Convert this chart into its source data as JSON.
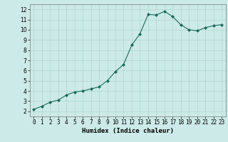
{
  "xlabel": "Humidex (Indice chaleur)",
  "x_values": [
    0,
    1,
    2,
    3,
    4,
    5,
    6,
    7,
    8,
    9,
    10,
    11,
    12,
    13,
    14,
    15,
    16,
    17,
    18,
    19,
    20,
    21,
    22,
    23
  ],
  "y_values": [
    2.2,
    2.5,
    2.9,
    3.1,
    3.6,
    3.9,
    4.0,
    4.2,
    4.4,
    5.0,
    5.9,
    6.6,
    8.5,
    9.6,
    11.5,
    11.45,
    11.8,
    11.3,
    10.5,
    10.0,
    9.9,
    10.2,
    10.4,
    10.5
  ],
  "line_color": "#1a6b5a",
  "marker_color": "#1a6b5a",
  "bg_color": "#cceae7",
  "grid_color": "#b0d5d0",
  "ylim": [
    1.5,
    12.5
  ],
  "xlim": [
    -0.5,
    23.5
  ],
  "yticks": [
    2,
    3,
    4,
    5,
    6,
    7,
    8,
    9,
    10,
    11,
    12
  ],
  "xticks": [
    0,
    1,
    2,
    3,
    4,
    5,
    6,
    7,
    8,
    9,
    10,
    11,
    12,
    13,
    14,
    15,
    16,
    17,
    18,
    19,
    20,
    21,
    22,
    23
  ],
  "tick_fontsize": 5.5,
  "xlabel_fontsize": 6.5,
  "xlabel_fontweight": "bold"
}
